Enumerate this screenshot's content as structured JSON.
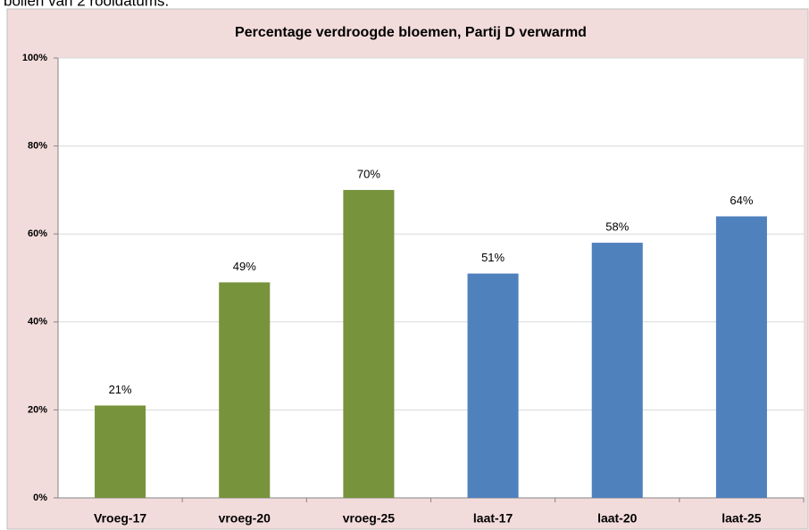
{
  "page_text": "bollen van 2 rooidatums.",
  "chart_data": {
    "type": "bar",
    "title": "Percentage verdroogde bloemen, Partij D verwarmd",
    "categories": [
      "Vroeg-17",
      "vroeg-20",
      "vroeg-25",
      "laat-17",
      "laat-20",
      "laat-25"
    ],
    "values": [
      21,
      49,
      70,
      51,
      58,
      64
    ],
    "value_labels": [
      "21%",
      "49%",
      "70%",
      "51%",
      "58%",
      "64%"
    ],
    "colors": [
      "#77933c",
      "#77933c",
      "#77933c",
      "#4f81bd",
      "#4f81bd",
      "#4f81bd"
    ],
    "ylim": [
      0,
      100
    ],
    "yticks": [
      {
        "value": 0,
        "label": "0%"
      },
      {
        "value": 20,
        "label": "20%"
      },
      {
        "value": 40,
        "label": "40%"
      },
      {
        "value": 60,
        "label": "60%"
      },
      {
        "value": 80,
        "label": "80%"
      },
      {
        "value": 100,
        "label": "100%"
      }
    ],
    "grid": true
  }
}
